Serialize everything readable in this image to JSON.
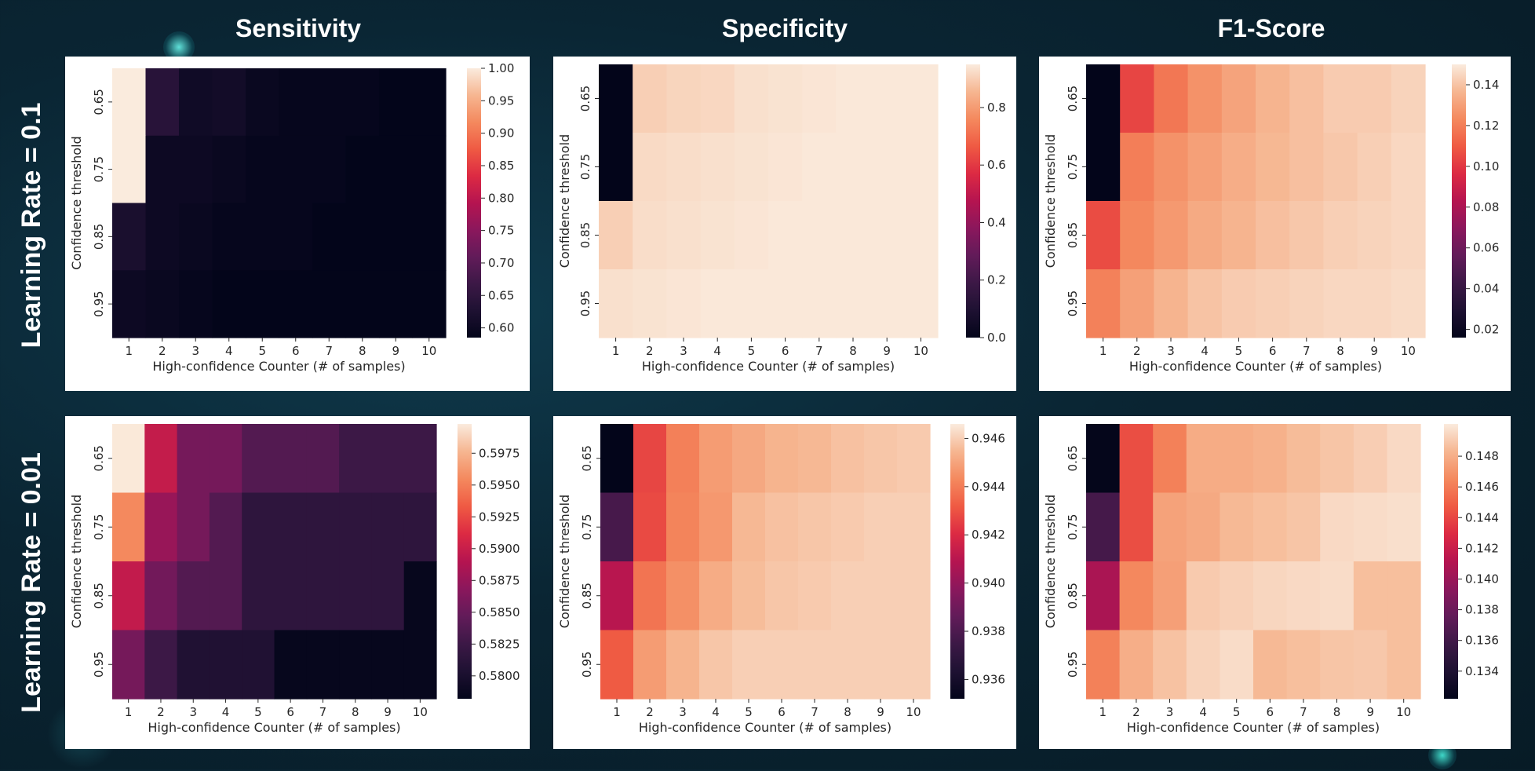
{
  "column_titles": [
    "Sensitivity",
    "Specificity",
    "F1-Score"
  ],
  "row_titles": [
    "Learning Rate = 0.1",
    "Learning Rate = 0.01"
  ],
  "chart_data": [
    {
      "type": "heatmap",
      "metric": "Sensitivity",
      "learning_rate": "Learning Rate = 0.1",
      "xlabel": "High-confidence Counter (# of samples)",
      "ylabel": "Confidence threshold",
      "x": [
        1,
        2,
        3,
        4,
        5,
        6,
        7,
        8,
        9,
        10
      ],
      "y": [
        0.65,
        0.75,
        0.85,
        0.95
      ],
      "values": [
        [
          1.0,
          0.64,
          0.605,
          0.61,
          0.595,
          0.59,
          0.59,
          0.59,
          0.585,
          0.585
        ],
        [
          1.0,
          0.6,
          0.6,
          0.595,
          0.59,
          0.59,
          0.59,
          0.585,
          0.585,
          0.585
        ],
        [
          0.62,
          0.6,
          0.595,
          0.59,
          0.59,
          0.59,
          0.585,
          0.585,
          0.585,
          0.585
        ],
        [
          0.6,
          0.595,
          0.59,
          0.585,
          0.585,
          0.585,
          0.585,
          0.585,
          0.585,
          0.585
        ]
      ],
      "vmin": 0.585,
      "vmax": 1.0,
      "colorbar_ticks": [
        "1.00",
        "0.95",
        "0.90",
        "0.85",
        "0.80",
        "0.75",
        "0.70",
        "0.65",
        "0.60"
      ],
      "colormap": "rocket"
    },
    {
      "type": "heatmap",
      "metric": "Specificity",
      "learning_rate": "Learning Rate = 0.1",
      "xlabel": "High-confidence Counter (# of samples)",
      "ylabel": "Confidence threshold",
      "x": [
        1,
        2,
        3,
        4,
        5,
        6,
        7,
        8,
        9,
        10
      ],
      "y": [
        0.65,
        0.75,
        0.85,
        0.95
      ],
      "values": [
        [
          0.0,
          0.9,
          0.91,
          0.915,
          0.93,
          0.935,
          0.94,
          0.945,
          0.945,
          0.945
        ],
        [
          0.0,
          0.92,
          0.925,
          0.93,
          0.935,
          0.94,
          0.945,
          0.945,
          0.945,
          0.945
        ],
        [
          0.9,
          0.925,
          0.93,
          0.935,
          0.94,
          0.945,
          0.945,
          0.945,
          0.945,
          0.945
        ],
        [
          0.93,
          0.935,
          0.94,
          0.945,
          0.945,
          0.945,
          0.945,
          0.945,
          0.945,
          0.945
        ]
      ],
      "vmin": 0.0,
      "vmax": 0.95,
      "colorbar_ticks": [
        "0.8",
        "0.6",
        "0.4",
        "0.2",
        "0.0"
      ],
      "colormap": "rocket"
    },
    {
      "type": "heatmap",
      "metric": "F1-Score",
      "learning_rate": "Learning Rate = 0.1",
      "xlabel": "High-confidence Counter (# of samples)",
      "ylabel": "Confidence threshold",
      "x": [
        1,
        2,
        3,
        4,
        5,
        6,
        7,
        8,
        9,
        10
      ],
      "y": [
        0.65,
        0.75,
        0.85,
        0.95
      ],
      "values": [
        [
          0.016,
          0.104,
          0.118,
          0.126,
          0.131,
          0.136,
          0.139,
          0.142,
          0.142,
          0.144
        ],
        [
          0.016,
          0.12,
          0.126,
          0.13,
          0.134,
          0.137,
          0.139,
          0.141,
          0.143,
          0.145
        ],
        [
          0.106,
          0.123,
          0.128,
          0.133,
          0.136,
          0.139,
          0.141,
          0.143,
          0.144,
          0.145
        ],
        [
          0.121,
          0.13,
          0.136,
          0.14,
          0.142,
          0.143,
          0.144,
          0.145,
          0.145,
          0.146
        ]
      ],
      "vmin": 0.016,
      "vmax": 0.15,
      "colorbar_ticks": [
        "0.14",
        "0.12",
        "0.10",
        "0.08",
        "0.06",
        "0.04",
        "0.02"
      ],
      "colormap": "rocket"
    },
    {
      "type": "heatmap",
      "metric": "Sensitivity",
      "learning_rate": "Learning Rate = 0.01",
      "xlabel": "High-confidence Counter (# of samples)",
      "ylabel": "Confidence threshold",
      "x": [
        1,
        2,
        3,
        4,
        5,
        6,
        7,
        8,
        9,
        10
      ],
      "y": [
        0.65,
        0.75,
        0.85,
        0.95
      ],
      "values": [
        [
          0.5997,
          0.5898,
          0.5857,
          0.5857,
          0.5838,
          0.5838,
          0.5838,
          0.5825,
          0.5825,
          0.5825
        ],
        [
          0.5955,
          0.5875,
          0.5857,
          0.5838,
          0.5815,
          0.5815,
          0.5815,
          0.5815,
          0.5815,
          0.5815
        ],
        [
          0.5897,
          0.5855,
          0.5838,
          0.5838,
          0.5815,
          0.5815,
          0.5815,
          0.5815,
          0.5815,
          0.5785
        ],
        [
          0.5857,
          0.5825,
          0.5805,
          0.5805,
          0.5805,
          0.5785,
          0.5785,
          0.5785,
          0.5785,
          0.5785
        ]
      ],
      "vmin": 0.5782,
      "vmax": 0.5998,
      "colorbar_ticks": [
        "0.5975",
        "0.5950",
        "0.5925",
        "0.5900",
        "0.5875",
        "0.5850",
        "0.5825",
        "0.5800"
      ],
      "colormap": "rocket"
    },
    {
      "type": "heatmap",
      "metric": "Specificity",
      "learning_rate": "Learning Rate = 0.01",
      "xlabel": "High-confidence Counter (# of samples)",
      "ylabel": "Confidence threshold",
      "x": [
        1,
        2,
        3,
        4,
        5,
        6,
        7,
        8,
        9,
        10
      ],
      "y": [
        0.65,
        0.75,
        0.85,
        0.95
      ],
      "values": [
        [
          0.9352,
          0.9427,
          0.9441,
          0.9448,
          0.9451,
          0.9454,
          0.9455,
          0.9457,
          0.9458,
          0.9459
        ],
        [
          0.9378,
          0.9428,
          0.9442,
          0.9447,
          0.9455,
          0.9457,
          0.9458,
          0.9459,
          0.946,
          0.946
        ],
        [
          0.941,
          0.9438,
          0.9445,
          0.9452,
          0.9456,
          0.9458,
          0.9459,
          0.946,
          0.946,
          0.946
        ],
        [
          0.9432,
          0.9448,
          0.9454,
          0.9458,
          0.946,
          0.946,
          0.946,
          0.946,
          0.946,
          0.946
        ]
      ],
      "vmin": 0.9352,
      "vmax": 0.9466,
      "colorbar_ticks": [
        "0.946",
        "0.944",
        "0.942",
        "0.940",
        "0.938",
        "0.936"
      ],
      "colormap": "rocket"
    },
    {
      "type": "heatmap",
      "metric": "F1-Score",
      "learning_rate": "Learning Rate = 0.01",
      "xlabel": "High-confidence Counter (# of samples)",
      "ylabel": "Confidence threshold",
      "x": [
        1,
        2,
        3,
        4,
        5,
        6,
        7,
        8,
        9,
        10
      ],
      "y": [
        0.65,
        0.75,
        0.85,
        0.95
      ],
      "values": [
        [
          0.1323,
          0.1443,
          0.1462,
          0.1479,
          0.1479,
          0.1481,
          0.1485,
          0.1488,
          0.1491,
          0.1495
        ],
        [
          0.1362,
          0.1443,
          0.1475,
          0.1478,
          0.1484,
          0.1486,
          0.1488,
          0.1495,
          0.1496,
          0.1497
        ],
        [
          0.1407,
          0.1465,
          0.1474,
          0.149,
          0.1492,
          0.1494,
          0.1495,
          0.1496,
          0.1486,
          0.1486
        ],
        [
          0.1462,
          0.148,
          0.1487,
          0.1493,
          0.1496,
          0.1484,
          0.1486,
          0.1488,
          0.1489,
          0.1486
        ]
      ],
      "vmin": 0.1322,
      "vmax": 0.1501,
      "colorbar_ticks": [
        "0.148",
        "0.146",
        "0.144",
        "0.142",
        "0.140",
        "0.138",
        "0.136",
        "0.134"
      ],
      "colormap": "rocket"
    }
  ]
}
